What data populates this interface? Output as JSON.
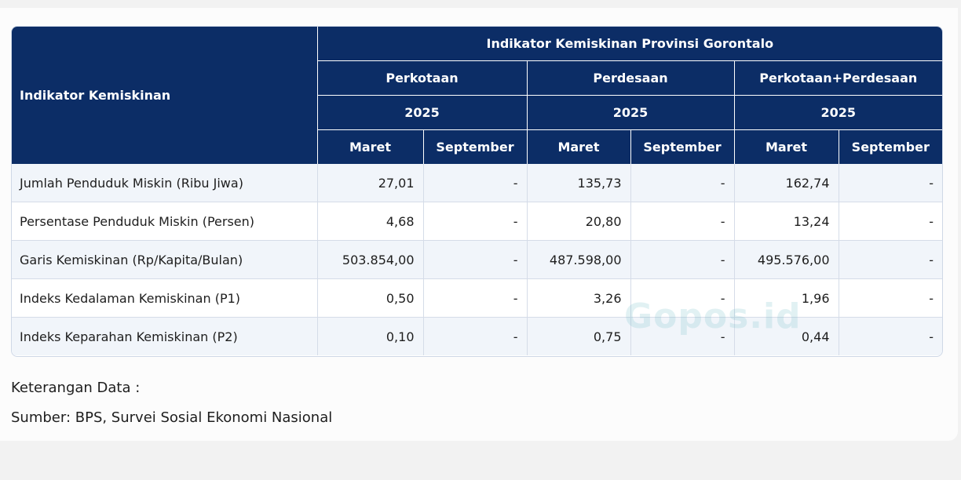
{
  "table": {
    "corner_header": "Indikator Kemiskinan",
    "group_header": "Indikator Kemiskinan Provinsi Gorontalo",
    "regions": [
      "Perkotaan",
      "Perdesaan",
      "Perkotaan+Perdesaan"
    ],
    "years": [
      "2025",
      "2025",
      "2025"
    ],
    "periods": [
      "Maret",
      "September",
      "Maret",
      "September",
      "Maret",
      "September"
    ],
    "rows": [
      {
        "label": "Jumlah Penduduk Miskin (Ribu Jiwa)",
        "values": [
          "27,01",
          "-",
          "135,73",
          "-",
          "162,74",
          "-"
        ]
      },
      {
        "label": "Persentase Penduduk Miskin (Persen)",
        "values": [
          "4,68",
          "-",
          "20,80",
          "-",
          "13,24",
          "-"
        ]
      },
      {
        "label": "Garis Kemiskinan (Rp/Kapita/Bulan)",
        "values": [
          "503.854,00",
          "-",
          "487.598,00",
          "-",
          "495.576,00",
          "-"
        ]
      },
      {
        "label": "Indeks Kedalaman Kemiskinan (P1)",
        "values": [
          "0,50",
          "-",
          "3,26",
          "-",
          "1,96",
          "-"
        ]
      },
      {
        "label": "Indeks Keparahan Kemiskinan (P2)",
        "values": [
          "0,10",
          "-",
          "0,75",
          "-",
          "0,44",
          "-"
        ]
      }
    ]
  },
  "notes": {
    "keterangan": "Keterangan Data :",
    "sumber": "Sumber: BPS, Survei Sosial Ekonomi Nasional"
  },
  "watermark": "Gopos.id"
}
